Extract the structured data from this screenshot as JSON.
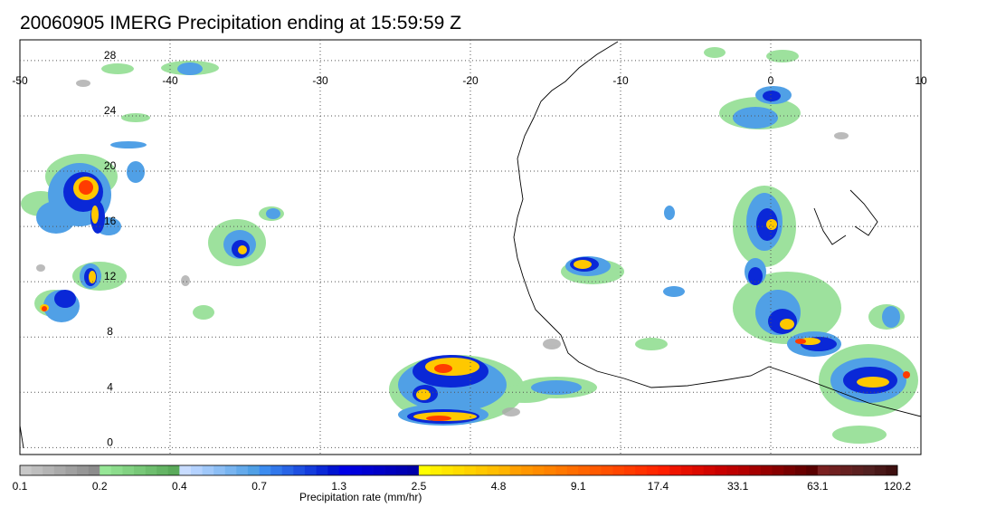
{
  "title": "20060905 IMERG Precipitation ending at 15:59:59 Z",
  "map": {
    "lon_range": [
      -50,
      10
    ],
    "lat_range": [
      -0.5,
      29.5
    ],
    "lon_ticks": [
      "-50",
      "-40",
      "-30",
      "-20",
      "-10",
      "0",
      "10"
    ],
    "lat_ticks": [
      "0",
      "4",
      "8",
      "12",
      "16",
      "20",
      "24",
      "28"
    ],
    "grid": "dotted"
  },
  "colorbar": {
    "title": "Precipitation rate (mm/hr)",
    "tick_labels": [
      "0.1",
      "0.2",
      "0.4",
      "0.7",
      "1.3",
      "2.5",
      "4.8",
      "9.1",
      "17.4",
      "33.1",
      "63.1",
      "120.2"
    ],
    "colors": [
      "#c8c8c8",
      "#bebebe",
      "#b4b4b4",
      "#aaaaaa",
      "#a0a0a0",
      "#969696",
      "#8c8c8c",
      "#96e696",
      "#8cdc8c",
      "#82d282",
      "#78c878",
      "#6ebe6e",
      "#64b464",
      "#5aaa5a",
      "#c8dcff",
      "#b4d2ff",
      "#a0c8fa",
      "#8cbef5",
      "#78b4f0",
      "#64aaeb",
      "#50a0e6",
      "#3c8cf0",
      "#3278eb",
      "#2864e6",
      "#1e50e1",
      "#143cdc",
      "#0a28d7",
      "#0014d2",
      "#0000e6",
      "#0000dc",
      "#0000d2",
      "#0000c8",
      "#0000be",
      "#0000b4",
      "#0000aa",
      "#ffff00",
      "#fff000",
      "#ffe600",
      "#ffdc00",
      "#ffd200",
      "#ffc800",
      "#ffbe00",
      "#ffb400",
      "#ffa000",
      "#ff9600",
      "#ff8c00",
      "#ff8200",
      "#ff7800",
      "#ff6e00",
      "#ff6400",
      "#ff5a00",
      "#ff5000",
      "#ff4600",
      "#ff3c00",
      "#ff3200",
      "#ff2800",
      "#ff1e00",
      "#f01400",
      "#e60f00",
      "#dc0a00",
      "#d20500",
      "#c80000",
      "#be0000",
      "#b40000",
      "#a50000",
      "#960000",
      "#870000",
      "#780000",
      "#690000",
      "#5a0000",
      "#7a2020",
      "#702020",
      "#662020",
      "#5c2020",
      "#522020",
      "#481818",
      "#3e1010"
    ]
  }
}
